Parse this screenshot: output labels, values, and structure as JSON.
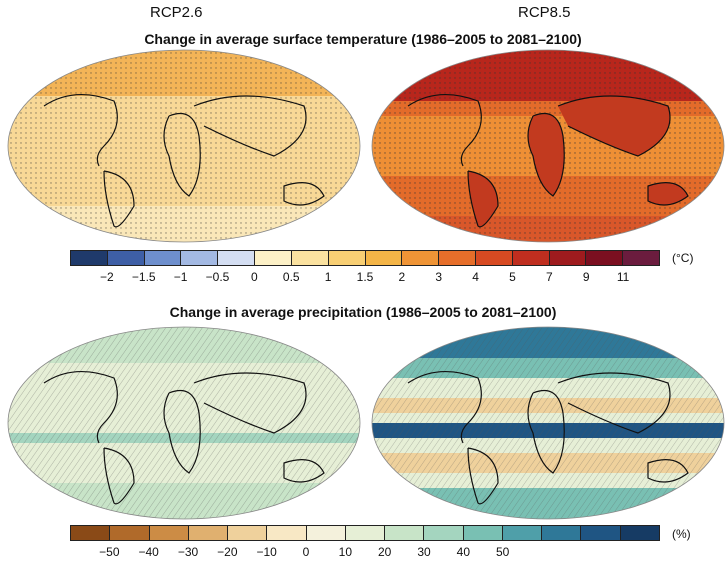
{
  "scenarios": {
    "left": "RCP2.6",
    "right": "RCP8.5"
  },
  "temperature": {
    "title": "Change in average surface temperature (1986–2005 to 2081–2100)",
    "unit": "(°C)",
    "colors": [
      "#1f3a6b",
      "#3e5fa6",
      "#6e8fcd",
      "#a3b9e3",
      "#d4def2",
      "#fdf1c7",
      "#fbe2a0",
      "#f8cf74",
      "#f4b547",
      "#ef9436",
      "#e66e2a",
      "#d74a22",
      "#bf2e1f",
      "#9e1b1e",
      "#7b0f20",
      "#6b1c3e"
    ],
    "ticks": [
      "−2",
      "−1.5",
      "−1",
      "−0.5",
      "0",
      "0.5",
      "1",
      "1.5",
      "2",
      "3",
      "4",
      "5",
      "7",
      "9",
      "11"
    ]
  },
  "precipitation": {
    "title": "Change in average precipitation (1986–2005 to 2081–2100)",
    "unit": "(%)",
    "colors": [
      "#8a4a17",
      "#b06a2a",
      "#cc8c45",
      "#e0b06f",
      "#efd19c",
      "#f8e8c5",
      "#f4f1dc",
      "#e6efd6",
      "#c8e4c8",
      "#a4d5bf",
      "#79c0b3",
      "#4f9fa9",
      "#2f7898",
      "#1f5583",
      "#163b64"
    ],
    "ticks": [
      "−50",
      "−40",
      "−30",
      "−20",
      "−10",
      "0",
      "10",
      "20",
      "30",
      "40",
      "50"
    ]
  }
}
